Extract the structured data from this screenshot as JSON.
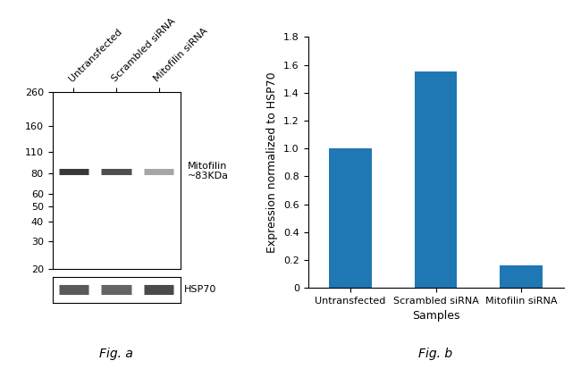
{
  "chart_data": [
    {
      "type": "blot",
      "title": "Fig. a",
      "categories": [
        "Untransfected",
        "Scrambled siRNA",
        "Mitofilin siRNA"
      ],
      "log": "y",
      "ylim": [
        20,
        260
      ],
      "yticks": [
        260,
        160,
        110,
        80,
        60,
        50,
        40,
        30,
        20
      ],
      "color": "#222222",
      "series": [
        {
          "name": "Mitofilin\n~83KDa",
          "values": [
            83,
            83,
            83
          ],
          "intensities": [
            0.9,
            0.8,
            0.4
          ]
        },
        {
          "name": "HSP70",
          "intensities": [
            0.75,
            0.7,
            0.82
          ]
        }
      ]
    },
    {
      "type": "bar",
      "title": "Fig. b",
      "categories": [
        "Untransfected",
        "Scrambled siRNA",
        "Mitofilin siRNA"
      ],
      "values": [
        1.0,
        1.55,
        0.16
      ],
      "xlabel": "Samples",
      "ylabel": "Expression normalized to HSP70",
      "ylim": [
        0,
        1.8
      ],
      "yticks": [
        0,
        0.2,
        0.4,
        0.6,
        0.8,
        {
          "value": 1.0,
          "label": "1.0"
        },
        1.2,
        1.4,
        1.6,
        1.8
      ]
    }
  ]
}
